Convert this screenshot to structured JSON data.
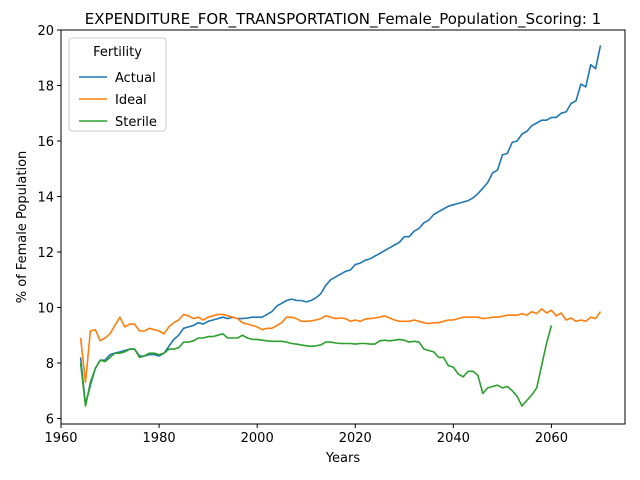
{
  "chart_data": {
    "type": "line",
    "title": "EXPENDITURE_FOR_TRANSPORTATION_Female_Population_Scoring: 1",
    "xlabel": "Years",
    "ylabel": "% of Female Population",
    "xlim": [
      1960,
      2075
    ],
    "ylim": [
      5.8,
      20.0
    ],
    "xticks": [
      1960,
      1980,
      2000,
      2020,
      2040,
      2060
    ],
    "yticks": [
      6,
      8,
      10,
      12,
      14,
      16,
      18,
      20
    ],
    "grid": false,
    "legend": {
      "title": "Fertility",
      "placement": "top-left"
    },
    "series": [
      {
        "name": "Actual",
        "color": "#1f77b4",
        "points": [
          [
            1964,
            8.2
          ],
          [
            1965,
            6.5
          ],
          [
            1966,
            7.2
          ],
          [
            1967,
            7.8
          ],
          [
            1968,
            8.1
          ],
          [
            1969,
            8.1
          ],
          [
            1970,
            8.3
          ],
          [
            1971,
            8.35
          ],
          [
            1972,
            8.4
          ],
          [
            1973,
            8.45
          ],
          [
            1974,
            8.5
          ],
          [
            1975,
            8.5
          ],
          [
            1976,
            8.25
          ],
          [
            1977,
            8.25
          ],
          [
            1978,
            8.3
          ],
          [
            1979,
            8.3
          ],
          [
            1980,
            8.25
          ],
          [
            1981,
            8.35
          ],
          [
            1982,
            8.6
          ],
          [
            1983,
            8.85
          ],
          [
            1984,
            9.0
          ],
          [
            1985,
            9.25
          ],
          [
            1986,
            9.3
          ],
          [
            1987,
            9.35
          ],
          [
            1988,
            9.45
          ],
          [
            1989,
            9.4
          ],
          [
            1990,
            9.5
          ],
          [
            1991,
            9.55
          ],
          [
            1992,
            9.6
          ],
          [
            1993,
            9.65
          ],
          [
            1994,
            9.6
          ],
          [
            1995,
            9.65
          ],
          [
            1996,
            9.6
          ],
          [
            1997,
            9.6
          ],
          [
            1998,
            9.62
          ],
          [
            1999,
            9.65
          ],
          [
            2000,
            9.65
          ],
          [
            2001,
            9.65
          ],
          [
            2002,
            9.75
          ],
          [
            2003,
            9.85
          ],
          [
            2004,
            10.05
          ],
          [
            2005,
            10.15
          ],
          [
            2006,
            10.25
          ],
          [
            2007,
            10.3
          ],
          [
            2008,
            10.25
          ],
          [
            2009,
            10.25
          ],
          [
            2010,
            10.2
          ],
          [
            2011,
            10.25
          ],
          [
            2012,
            10.35
          ],
          [
            2013,
            10.5
          ],
          [
            2014,
            10.8
          ],
          [
            2015,
            11.0
          ],
          [
            2016,
            11.1
          ],
          [
            2017,
            11.2
          ],
          [
            2018,
            11.3
          ],
          [
            2019,
            11.35
          ],
          [
            2020,
            11.55
          ],
          [
            2021,
            11.6
          ],
          [
            2022,
            11.7
          ],
          [
            2023,
            11.75
          ],
          [
            2024,
            11.85
          ],
          [
            2025,
            11.95
          ],
          [
            2026,
            12.05
          ],
          [
            2027,
            12.15
          ],
          [
            2028,
            12.25
          ],
          [
            2029,
            12.35
          ],
          [
            2030,
            12.55
          ],
          [
            2031,
            12.55
          ],
          [
            2032,
            12.75
          ],
          [
            2033,
            12.85
          ],
          [
            2034,
            13.05
          ],
          [
            2035,
            13.15
          ],
          [
            2036,
            13.35
          ],
          [
            2037,
            13.45
          ],
          [
            2038,
            13.55
          ],
          [
            2039,
            13.65
          ],
          [
            2040,
            13.7
          ],
          [
            2041,
            13.75
          ],
          [
            2042,
            13.8
          ],
          [
            2043,
            13.85
          ],
          [
            2044,
            13.95
          ],
          [
            2045,
            14.1
          ],
          [
            2046,
            14.3
          ],
          [
            2047,
            14.5
          ],
          [
            2048,
            14.85
          ],
          [
            2049,
            14.95
          ],
          [
            2050,
            15.5
          ],
          [
            2051,
            15.55
          ],
          [
            2052,
            15.95
          ],
          [
            2053,
            16.0
          ],
          [
            2054,
            16.25
          ],
          [
            2055,
            16.35
          ],
          [
            2056,
            16.55
          ],
          [
            2057,
            16.65
          ],
          [
            2058,
            16.75
          ],
          [
            2059,
            16.75
          ],
          [
            2060,
            16.85
          ],
          [
            2061,
            16.85
          ],
          [
            2062,
            17.0
          ],
          [
            2063,
            17.05
          ],
          [
            2064,
            17.35
          ],
          [
            2065,
            17.45
          ],
          [
            2066,
            18.05
          ],
          [
            2067,
            17.95
          ],
          [
            2068,
            18.75
          ],
          [
            2069,
            18.6
          ],
          [
            2070,
            19.45
          ]
        ]
      },
      {
        "name": "Ideal",
        "color": "#ff7f0e",
        "points": [
          [
            1964,
            8.9
          ],
          [
            1965,
            7.3
          ],
          [
            1966,
            9.15
          ],
          [
            1967,
            9.2
          ],
          [
            1968,
            8.8
          ],
          [
            1969,
            8.9
          ],
          [
            1970,
            9.05
          ],
          [
            1971,
            9.35
          ],
          [
            1972,
            9.65
          ],
          [
            1973,
            9.3
          ],
          [
            1974,
            9.4
          ],
          [
            1975,
            9.4
          ],
          [
            1976,
            9.15
          ],
          [
            1977,
            9.15
          ],
          [
            1978,
            9.25
          ],
          [
            1979,
            9.2
          ],
          [
            1980,
            9.15
          ],
          [
            1981,
            9.05
          ],
          [
            1982,
            9.3
          ],
          [
            1983,
            9.45
          ],
          [
            1984,
            9.55
          ],
          [
            1985,
            9.75
          ],
          [
            1986,
            9.7
          ],
          [
            1987,
            9.6
          ],
          [
            1988,
            9.65
          ],
          [
            1989,
            9.55
          ],
          [
            1990,
            9.65
          ],
          [
            1991,
            9.7
          ],
          [
            1992,
            9.75
          ],
          [
            1993,
            9.75
          ],
          [
            1994,
            9.7
          ],
          [
            1995,
            9.65
          ],
          [
            1996,
            9.6
          ],
          [
            1997,
            9.45
          ],
          [
            1998,
            9.4
          ],
          [
            1999,
            9.35
          ],
          [
            2000,
            9.3
          ],
          [
            2001,
            9.2
          ],
          [
            2002,
            9.25
          ],
          [
            2003,
            9.25
          ],
          [
            2004,
            9.35
          ],
          [
            2005,
            9.45
          ],
          [
            2006,
            9.65
          ],
          [
            2007,
            9.65
          ],
          [
            2008,
            9.6
          ],
          [
            2009,
            9.5
          ],
          [
            2010,
            9.5
          ],
          [
            2011,
            9.52
          ],
          [
            2012,
            9.55
          ],
          [
            2013,
            9.6
          ],
          [
            2014,
            9.7
          ],
          [
            2015,
            9.65
          ],
          [
            2016,
            9.6
          ],
          [
            2017,
            9.62
          ],
          [
            2018,
            9.6
          ],
          [
            2019,
            9.5
          ],
          [
            2020,
            9.55
          ],
          [
            2021,
            9.5
          ],
          [
            2022,
            9.58
          ],
          [
            2023,
            9.6
          ],
          [
            2024,
            9.62
          ],
          [
            2025,
            9.65
          ],
          [
            2026,
            9.7
          ],
          [
            2027,
            9.62
          ],
          [
            2028,
            9.55
          ],
          [
            2029,
            9.5
          ],
          [
            2030,
            9.5
          ],
          [
            2031,
            9.5
          ],
          [
            2032,
            9.55
          ],
          [
            2033,
            9.5
          ],
          [
            2034,
            9.45
          ],
          [
            2035,
            9.42
          ],
          [
            2036,
            9.45
          ],
          [
            2037,
            9.45
          ],
          [
            2038,
            9.5
          ],
          [
            2039,
            9.55
          ],
          [
            2040,
            9.55
          ],
          [
            2041,
            9.6
          ],
          [
            2042,
            9.65
          ],
          [
            2043,
            9.65
          ],
          [
            2044,
            9.65
          ],
          [
            2045,
            9.65
          ],
          [
            2046,
            9.6
          ],
          [
            2047,
            9.62
          ],
          [
            2048,
            9.65
          ],
          [
            2049,
            9.65
          ],
          [
            2050,
            9.68
          ],
          [
            2051,
            9.72
          ],
          [
            2052,
            9.72
          ],
          [
            2053,
            9.72
          ],
          [
            2054,
            9.78
          ],
          [
            2055,
            9.72
          ],
          [
            2056,
            9.85
          ],
          [
            2057,
            9.78
          ],
          [
            2058,
            9.95
          ],
          [
            2059,
            9.8
          ],
          [
            2060,
            9.9
          ],
          [
            2061,
            9.7
          ],
          [
            2062,
            9.8
          ],
          [
            2063,
            9.55
          ],
          [
            2064,
            9.62
          ],
          [
            2065,
            9.5
          ],
          [
            2066,
            9.55
          ],
          [
            2067,
            9.5
          ],
          [
            2068,
            9.65
          ],
          [
            2069,
            9.6
          ],
          [
            2070,
            9.85
          ]
        ]
      },
      {
        "name": "Sterile",
        "color": "#2ca02c",
        "points": [
          [
            1964,
            8.0
          ],
          [
            1965,
            6.45
          ],
          [
            1966,
            7.3
          ],
          [
            1967,
            7.8
          ],
          [
            1968,
            8.1
          ],
          [
            1969,
            8.05
          ],
          [
            1970,
            8.2
          ],
          [
            1971,
            8.35
          ],
          [
            1972,
            8.35
          ],
          [
            1973,
            8.4
          ],
          [
            1974,
            8.5
          ],
          [
            1975,
            8.5
          ],
          [
            1976,
            8.2
          ],
          [
            1977,
            8.25
          ],
          [
            1978,
            8.35
          ],
          [
            1979,
            8.35
          ],
          [
            1980,
            8.3
          ],
          [
            1981,
            8.35
          ],
          [
            1982,
            8.5
          ],
          [
            1983,
            8.5
          ],
          [
            1984,
            8.55
          ],
          [
            1985,
            8.75
          ],
          [
            1986,
            8.75
          ],
          [
            1987,
            8.8
          ],
          [
            1988,
            8.9
          ],
          [
            1989,
            8.9
          ],
          [
            1990,
            8.95
          ],
          [
            1991,
            8.95
          ],
          [
            1992,
            9.0
          ],
          [
            1993,
            9.05
          ],
          [
            1994,
            8.9
          ],
          [
            1995,
            8.9
          ],
          [
            1996,
            8.9
          ],
          [
            1997,
            9.0
          ],
          [
            1998,
            8.9
          ],
          [
            1999,
            8.85
          ],
          [
            2000,
            8.85
          ],
          [
            2001,
            8.82
          ],
          [
            2002,
            8.8
          ],
          [
            2003,
            8.78
          ],
          [
            2004,
            8.78
          ],
          [
            2005,
            8.78
          ],
          [
            2006,
            8.75
          ],
          [
            2007,
            8.7
          ],
          [
            2008,
            8.68
          ],
          [
            2009,
            8.65
          ],
          [
            2010,
            8.62
          ],
          [
            2011,
            8.6
          ],
          [
            2012,
            8.62
          ],
          [
            2013,
            8.65
          ],
          [
            2014,
            8.75
          ],
          [
            2015,
            8.75
          ],
          [
            2016,
            8.72
          ],
          [
            2017,
            8.7
          ],
          [
            2018,
            8.7
          ],
          [
            2019,
            8.7
          ],
          [
            2020,
            8.68
          ],
          [
            2021,
            8.7
          ],
          [
            2022,
            8.7
          ],
          [
            2023,
            8.68
          ],
          [
            2024,
            8.68
          ],
          [
            2025,
            8.8
          ],
          [
            2026,
            8.82
          ],
          [
            2027,
            8.8
          ],
          [
            2028,
            8.82
          ],
          [
            2029,
            8.85
          ],
          [
            2030,
            8.82
          ],
          [
            2031,
            8.75
          ],
          [
            2032,
            8.78
          ],
          [
            2033,
            8.75
          ],
          [
            2034,
            8.5
          ],
          [
            2035,
            8.45
          ],
          [
            2036,
            8.4
          ],
          [
            2037,
            8.2
          ],
          [
            2038,
            8.2
          ],
          [
            2039,
            7.9
          ],
          [
            2040,
            7.85
          ],
          [
            2041,
            7.6
          ],
          [
            2042,
            7.5
          ],
          [
            2043,
            7.7
          ],
          [
            2044,
            7.7
          ],
          [
            2045,
            7.55
          ],
          [
            2046,
            6.9
          ],
          [
            2047,
            7.1
          ],
          [
            2048,
            7.15
          ],
          [
            2049,
            7.2
          ],
          [
            2050,
            7.1
          ],
          [
            2051,
            7.15
          ],
          [
            2052,
            7.0
          ],
          [
            2053,
            6.8
          ],
          [
            2054,
            6.45
          ],
          [
            2055,
            6.65
          ],
          [
            2056,
            6.85
          ],
          [
            2057,
            7.1
          ],
          [
            2058,
            7.9
          ],
          [
            2059,
            8.7
          ],
          [
            2060,
            9.35
          ]
        ]
      }
    ]
  }
}
